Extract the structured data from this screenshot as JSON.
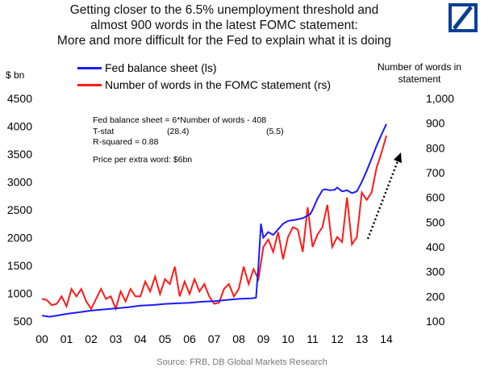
{
  "title_lines": [
    "Getting closer to the 6.5% unemployment threshold and",
    "almost 900 words in the latest FOMC statement:",
    "More and more difficult for the Fed to explain what it is doing"
  ],
  "source": "Source: FRB, DB Global Markets Research",
  "left_unit": "$ bn",
  "right_unit_lines": [
    "Number of words in",
    "statement"
  ],
  "annotation": {
    "equation": "Fed balance sheet = 6*Number of words - 408",
    "tstat_label": "T-stat",
    "tstat_1": "(28.4)",
    "tstat_2": "(5.5)",
    "r_squared": "R-squared = 0.88",
    "price": "Price per extra word: $6bn"
  },
  "colors": {
    "balance": "#1a1aff",
    "words": "#ff1a1a",
    "logo": "#0a3f96",
    "arrow": "#000000"
  },
  "chart_data": {
    "type": "line",
    "x_tick_labels": [
      "00",
      "01",
      "02",
      "03",
      "04",
      "05",
      "06",
      "07",
      "08",
      "09",
      "10",
      "11",
      "12",
      "13",
      "14"
    ],
    "ylim_left": [
      500,
      4500
    ],
    "ylim_right": [
      100,
      1000
    ],
    "y_left_ticks": [
      "500",
      "1000",
      "1500",
      "2000",
      "2500",
      "3000",
      "3500",
      "4000",
      "4500"
    ],
    "y_right_ticks": [
      "100",
      "200",
      "300",
      "400",
      "500",
      "600",
      "700",
      "800",
      "900",
      "1,000"
    ],
    "xlim": [
      2000.0,
      2014.5
    ],
    "series": [
      {
        "name": "Fed balance sheet (ls)",
        "axis": "left",
        "x": [
          2000.0,
          2000.3,
          2000.6,
          2001.0,
          2001.5,
          2002.0,
          2002.5,
          2003.0,
          2003.5,
          2004.0,
          2004.5,
          2005.0,
          2005.5,
          2006.0,
          2006.5,
          2007.0,
          2007.5,
          2008.0,
          2008.5,
          2008.7,
          2008.8,
          2008.9,
          2009.0,
          2009.2,
          2009.4,
          2009.6,
          2009.8,
          2010.0,
          2010.3,
          2010.6,
          2010.9,
          2011.0,
          2011.2,
          2011.4,
          2011.5,
          2011.7,
          2011.9,
          2012.0,
          2012.2,
          2012.4,
          2012.6,
          2012.8,
          2013.0,
          2013.2,
          2013.4,
          2013.6,
          2013.8,
          2014.0
        ],
        "y": [
          600,
          580,
          600,
          630,
          660,
          690,
          710,
          730,
          750,
          780,
          790,
          810,
          820,
          830,
          850,
          860,
          880,
          900,
          910,
          920,
          1500,
          2250,
          2000,
          2100,
          2050,
          2150,
          2250,
          2300,
          2320,
          2350,
          2420,
          2500,
          2700,
          2850,
          2870,
          2850,
          2860,
          2900,
          2830,
          2850,
          2800,
          2830,
          3000,
          3200,
          3420,
          3650,
          3850,
          4040
        ]
      },
      {
        "name": "Number of words in the FOMC statement (rs)",
        "axis": "right",
        "x": [
          2000.0,
          2000.2,
          2000.4,
          2000.6,
          2000.8,
          2001.0,
          2001.2,
          2001.4,
          2001.6,
          2001.8,
          2002.0,
          2002.2,
          2002.4,
          2002.6,
          2002.8,
          2003.0,
          2003.2,
          2003.4,
          2003.6,
          2003.8,
          2004.0,
          2004.2,
          2004.4,
          2004.6,
          2004.8,
          2005.0,
          2005.2,
          2005.4,
          2005.6,
          2005.8,
          2006.0,
          2006.2,
          2006.4,
          2006.6,
          2006.8,
          2007.0,
          2007.2,
          2007.4,
          2007.6,
          2007.8,
          2008.0,
          2008.2,
          2008.4,
          2008.6,
          2008.8,
          2009.0,
          2009.2,
          2009.4,
          2009.6,
          2009.8,
          2010.0,
          2010.2,
          2010.4,
          2010.6,
          2010.8,
          2011.0,
          2011.2,
          2011.4,
          2011.6,
          2011.8,
          2012.0,
          2012.2,
          2012.4,
          2012.6,
          2012.8,
          2013.0,
          2013.2,
          2013.4,
          2013.6,
          2013.8,
          2014.0
        ],
        "y": [
          190,
          185,
          165,
          170,
          200,
          160,
          230,
          200,
          230,
          180,
          150,
          190,
          230,
          190,
          200,
          150,
          220,
          180,
          230,
          200,
          200,
          260,
          220,
          280,
          210,
          270,
          250,
          320,
          200,
          260,
          210,
          270,
          220,
          250,
          200,
          170,
          175,
          230,
          250,
          200,
          230,
          320,
          250,
          310,
          270,
          400,
          430,
          380,
          460,
          350,
          440,
          480,
          470,
          380,
          560,
          400,
          450,
          480,
          570,
          400,
          440,
          420,
          600,
          410,
          440,
          620,
          590,
          620,
          720,
          780,
          850
        ]
      }
    ]
  }
}
